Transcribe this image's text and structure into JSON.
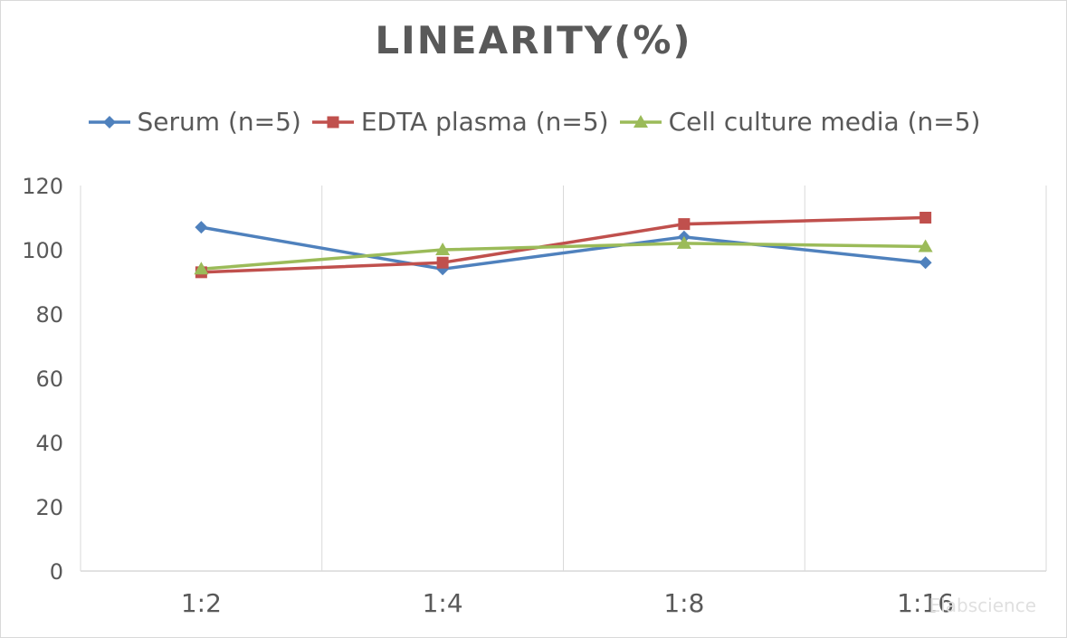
{
  "chart_data": {
    "type": "line",
    "title": "LINEARITY(%)",
    "categories": [
      "1:2",
      "1:4",
      "1:8",
      "1:16"
    ],
    "series": [
      {
        "name": "Serum (n=5)",
        "values": [
          107,
          94,
          104,
          96
        ],
        "color": "#4f81bd",
        "marker": "diamond"
      },
      {
        "name": "EDTA plasma (n=5)",
        "values": [
          93,
          96,
          108,
          110
        ],
        "color": "#c0504d",
        "marker": "square"
      },
      {
        "name": "Cell culture media (n=5)",
        "values": [
          94,
          100,
          102,
          101
        ],
        "color": "#9bbb59",
        "marker": "triangle"
      }
    ],
    "ylim": [
      0,
      120
    ],
    "yticks": [
      0,
      20,
      40,
      60,
      80,
      100,
      120
    ],
    "grid": "vertical",
    "legend": "top"
  },
  "watermark": "Elabscience"
}
